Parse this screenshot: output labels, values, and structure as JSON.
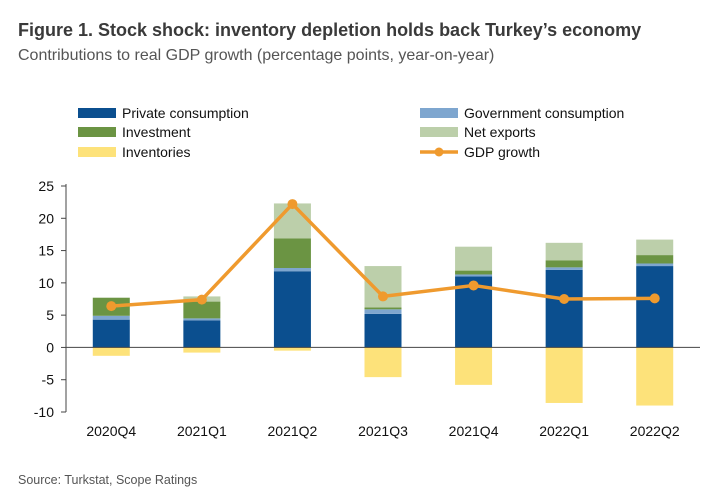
{
  "title": "Figure 1. Stock shock: inventory depletion holds back Turkey’s economy",
  "subtitle": "Contributions to real GDP growth (percentage points, year-on-year)",
  "source": "Source: Turkstat, Scope Ratings",
  "chart_data": {
    "type": "bar",
    "stacked": true,
    "categories": [
      "2020Q4",
      "2021Q1",
      "2021Q2",
      "2021Q3",
      "2021Q4",
      "2022Q1",
      "2022Q2"
    ],
    "ylim": [
      -10,
      25
    ],
    "yticks": [
      -10,
      -5,
      0,
      5,
      10,
      15,
      20,
      25
    ],
    "grid": false,
    "legend_position": "top",
    "series": [
      {
        "name": "Private consumption",
        "kind": "bar",
        "color": "#0b4f8f",
        "values": [
          4.3,
          4.2,
          11.8,
          5.2,
          11.0,
          12.0,
          12.6
        ]
      },
      {
        "name": "Government consumption",
        "kind": "bar",
        "color": "#7ea6cf",
        "values": [
          0.6,
          0.3,
          0.5,
          0.7,
          0.3,
          0.4,
          0.4
        ]
      },
      {
        "name": "Investment",
        "kind": "bar",
        "color": "#6b9443",
        "values": [
          2.8,
          2.6,
          4.6,
          0.3,
          0.6,
          1.1,
          1.3
        ]
      },
      {
        "name": "Net exports",
        "kind": "bar",
        "color": "#bccfaa",
        "values": [
          0.0,
          0.8,
          5.4,
          6.4,
          3.7,
          2.7,
          2.4
        ]
      },
      {
        "name": "Inventories",
        "kind": "bar",
        "color": "#fde27a",
        "values": [
          -1.3,
          -0.8,
          -0.5,
          -4.6,
          -5.8,
          -8.6,
          -9.0
        ]
      },
      {
        "name": "GDP growth",
        "kind": "line",
        "color": "#ef9a2e",
        "values": [
          6.4,
          7.4,
          22.2,
          7.9,
          9.6,
          7.5,
          7.6
        ]
      }
    ]
  }
}
